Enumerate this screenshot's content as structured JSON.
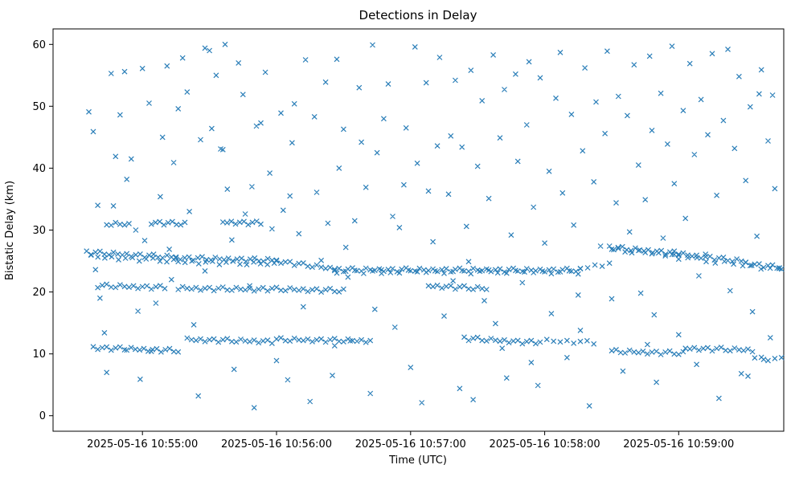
{
  "chart_data": {
    "type": "scatter",
    "title": "Detections in Delay",
    "xlabel": "Time (UTC)",
    "ylabel": "Bistatic Delay (km)",
    "marker": "x",
    "marker_color": "#1f77b4",
    "x_seconds_origin": "2025-05-16 10:54:00",
    "xlim": [
      20,
      347
    ],
    "ylim": [
      -2.5,
      62.5
    ],
    "yticks": [
      0,
      10,
      20,
      30,
      40,
      50,
      60
    ],
    "xticks": [
      {
        "t": 60,
        "label": "2025-05-16 10:55:00"
      },
      {
        "t": 120,
        "label": "2025-05-16 10:56:00"
      },
      {
        "t": 180,
        "label": "2025-05-16 10:57:00"
      },
      {
        "t": 240,
        "label": "2025-05-16 10:58:00"
      },
      {
        "t": 300,
        "label": "2025-05-16 10:59:00"
      }
    ],
    "legend": "none",
    "grid": false,
    "jitter_pattern": [
      0.2,
      -0.3,
      0.1,
      0.3,
      -0.15,
      -0.2,
      0.25,
      0,
      -0.1,
      0.15,
      -0.25,
      0.05
    ],
    "track_segments": [
      [
        35,
        75,
        2,
        26.4,
        25.6
      ],
      [
        75,
        120,
        2,
        25.5,
        25.1
      ],
      [
        120,
        146,
        2,
        25.0,
        23.7
      ],
      [
        146,
        256,
        2,
        23.6,
        23.5
      ],
      [
        256,
        269,
        3,
        23.8,
        24.6
      ],
      [
        269,
        298,
        2,
        27.2,
        26.3
      ],
      [
        298,
        330,
        2,
        26.2,
        24.9
      ],
      [
        330,
        346,
        2,
        24.6,
        23.9
      ],
      [
        37,
        74,
        3,
        25.7,
        25.0
      ],
      [
        76,
        119,
        3,
        24.9,
        24.5
      ],
      [
        147,
        255,
        4,
        23.3,
        23.2
      ],
      [
        270,
        300,
        3,
        26.8,
        25.9
      ],
      [
        300,
        345,
        4,
        25.6,
        23.6
      ],
      [
        40,
        70,
        2,
        21.0,
        20.7
      ],
      [
        76,
        112,
        2,
        20.6,
        20.4
      ],
      [
        114,
        150,
        2,
        20.5,
        20.2
      ],
      [
        188,
        214,
        2,
        21.0,
        20.5
      ],
      [
        38,
        52,
        2,
        11.0,
        10.8
      ],
      [
        53,
        76,
        2,
        10.8,
        10.5
      ],
      [
        80,
        118,
        2,
        12.3,
        12.0
      ],
      [
        120,
        162,
        2,
        12.3,
        12.1
      ],
      [
        204,
        236,
        2,
        12.5,
        11.8
      ],
      [
        238,
        262,
        3,
        12.1,
        11.9
      ],
      [
        270,
        302,
        2,
        10.4,
        10.1
      ],
      [
        303,
        333,
        2,
        10.9,
        10.6
      ],
      [
        334,
        346,
        3,
        9.3,
        9.1
      ],
      [
        44,
        54,
        2,
        31.0,
        30.9
      ],
      [
        64,
        79,
        2,
        31.2,
        31.0
      ],
      [
        96,
        113,
        2,
        31.3,
        31.1
      ]
    ],
    "noise_points": [
      [
        36,
        49.1
      ],
      [
        38,
        45.9
      ],
      [
        39,
        23.6
      ],
      [
        40,
        34.0
      ],
      [
        41,
        19.0
      ],
      [
        43,
        13.4
      ],
      [
        44,
        7.0
      ],
      [
        46,
        55.3
      ],
      [
        47,
        33.9
      ],
      [
        48,
        41.9
      ],
      [
        50,
        48.6
      ],
      [
        52,
        55.6
      ],
      [
        53,
        38.2
      ],
      [
        55,
        41.5
      ],
      [
        57,
        30.0
      ],
      [
        58,
        16.9
      ],
      [
        59,
        5.9
      ],
      [
        60,
        56.1
      ],
      [
        61,
        28.3
      ],
      [
        63,
        50.5
      ],
      [
        64,
        10.4
      ],
      [
        66,
        18.2
      ],
      [
        68,
        35.4
      ],
      [
        69,
        45.0
      ],
      [
        71,
        56.5
      ],
      [
        72,
        26.9
      ],
      [
        73,
        22.0
      ],
      [
        74,
        40.9
      ],
      [
        76,
        49.6
      ],
      [
        78,
        57.8
      ],
      [
        80,
        52.3
      ],
      [
        81,
        33.0
      ],
      [
        83,
        14.7
      ],
      [
        85,
        3.2
      ],
      [
        86,
        44.6
      ],
      [
        88,
        59.4
      ],
      [
        88,
        23.4
      ],
      [
        90,
        59.0
      ],
      [
        91,
        46.4
      ],
      [
        93,
        55.0
      ],
      [
        95,
        43.1
      ],
      [
        96,
        43.0
      ],
      [
        97,
        60.0
      ],
      [
        98,
        36.6
      ],
      [
        100,
        28.4
      ],
      [
        101,
        7.5
      ],
      [
        103,
        57.0
      ],
      [
        105,
        51.9
      ],
      [
        106,
        32.6
      ],
      [
        108,
        21.0
      ],
      [
        109,
        37.0
      ],
      [
        110,
        1.3
      ],
      [
        111,
        46.8
      ],
      [
        113,
        47.3
      ],
      [
        115,
        55.5
      ],
      [
        117,
        39.2
      ],
      [
        118,
        30.2
      ],
      [
        120,
        8.9
      ],
      [
        122,
        48.9
      ],
      [
        123,
        33.2
      ],
      [
        125,
        5.8
      ],
      [
        126,
        35.5
      ],
      [
        127,
        44.1
      ],
      [
        128,
        50.4
      ],
      [
        130,
        29.4
      ],
      [
        132,
        17.6
      ],
      [
        133,
        57.5
      ],
      [
        135,
        2.3
      ],
      [
        137,
        48.3
      ],
      [
        138,
        36.1
      ],
      [
        140,
        25.1
      ],
      [
        142,
        53.9
      ],
      [
        143,
        31.1
      ],
      [
        145,
        6.5
      ],
      [
        146,
        11.3
      ],
      [
        147,
        57.6
      ],
      [
        148,
        40.0
      ],
      [
        150,
        46.3
      ],
      [
        151,
        27.2
      ],
      [
        152,
        22.4
      ],
      [
        153,
        12.1
      ],
      [
        155,
        31.5
      ],
      [
        157,
        53.0
      ],
      [
        158,
        44.2
      ],
      [
        160,
        36.9
      ],
      [
        162,
        3.6
      ],
      [
        163,
        59.9
      ],
      [
        164,
        17.2
      ],
      [
        165,
        42.5
      ],
      [
        167,
        23.0
      ],
      [
        168,
        48.0
      ],
      [
        170,
        53.6
      ],
      [
        172,
        32.2
      ],
      [
        173,
        14.3
      ],
      [
        175,
        30.4
      ],
      [
        177,
        37.3
      ],
      [
        178,
        46.5
      ],
      [
        180,
        7.8
      ],
      [
        182,
        59.6
      ],
      [
        183,
        40.8
      ],
      [
        185,
        2.1
      ],
      [
        187,
        53.8
      ],
      [
        188,
        36.3
      ],
      [
        190,
        28.1
      ],
      [
        192,
        43.6
      ],
      [
        193,
        57.9
      ],
      [
        195,
        16.1
      ],
      [
        197,
        35.8
      ],
      [
        198,
        45.2
      ],
      [
        199,
        21.8
      ],
      [
        200,
        54.2
      ],
      [
        202,
        4.4
      ],
      [
        203,
        43.4
      ],
      [
        205,
        30.6
      ],
      [
        206,
        24.9
      ],
      [
        207,
        55.8
      ],
      [
        208,
        2.6
      ],
      [
        210,
        40.3
      ],
      [
        212,
        50.9
      ],
      [
        213,
        18.6
      ],
      [
        215,
        35.1
      ],
      [
        217,
        58.3
      ],
      [
        218,
        14.9
      ],
      [
        220,
        44.9
      ],
      [
        221,
        10.9
      ],
      [
        222,
        52.7
      ],
      [
        223,
        6.1
      ],
      [
        225,
        29.2
      ],
      [
        227,
        55.2
      ],
      [
        228,
        41.1
      ],
      [
        230,
        21.5
      ],
      [
        232,
        47.0
      ],
      [
        233,
        57.2
      ],
      [
        234,
        8.6
      ],
      [
        235,
        33.7
      ],
      [
        237,
        4.9
      ],
      [
        238,
        54.6
      ],
      [
        240,
        27.9
      ],
      [
        242,
        39.5
      ],
      [
        243,
        16.5
      ],
      [
        245,
        51.3
      ],
      [
        247,
        58.7
      ],
      [
        248,
        36.0
      ],
      [
        250,
        9.4
      ],
      [
        252,
        48.7
      ],
      [
        253,
        30.8
      ],
      [
        255,
        19.5
      ],
      [
        256,
        13.8
      ],
      [
        257,
        42.8
      ],
      [
        258,
        56.2
      ],
      [
        260,
        1.6
      ],
      [
        262,
        37.8
      ],
      [
        263,
        50.7
      ],
      [
        265,
        27.4
      ],
      [
        267,
        45.6
      ],
      [
        268,
        58.9
      ],
      [
        270,
        18.9
      ],
      [
        272,
        34.4
      ],
      [
        273,
        51.6
      ],
      [
        275,
        7.2
      ],
      [
        277,
        48.5
      ],
      [
        278,
        29.7
      ],
      [
        280,
        56.7
      ],
      [
        282,
        40.5
      ],
      [
        283,
        19.8
      ],
      [
        285,
        34.9
      ],
      [
        286,
        11.5
      ],
      [
        287,
        58.1
      ],
      [
        288,
        46.1
      ],
      [
        289,
        16.3
      ],
      [
        290,
        5.4
      ],
      [
        292,
        52.1
      ],
      [
        293,
        28.7
      ],
      [
        295,
        43.9
      ],
      [
        297,
        59.7
      ],
      [
        298,
        37.5
      ],
      [
        300,
        13.1
      ],
      [
        302,
        49.3
      ],
      [
        303,
        31.9
      ],
      [
        305,
        56.9
      ],
      [
        307,
        42.2
      ],
      [
        308,
        8.3
      ],
      [
        309,
        22.6
      ],
      [
        310,
        51.1
      ],
      [
        312,
        26.1
      ],
      [
        313,
        45.4
      ],
      [
        315,
        58.5
      ],
      [
        317,
        35.6
      ],
      [
        318,
        2.8
      ],
      [
        320,
        47.7
      ],
      [
        322,
        59.2
      ],
      [
        323,
        20.2
      ],
      [
        325,
        43.2
      ],
      [
        327,
        54.8
      ],
      [
        328,
        6.8
      ],
      [
        330,
        38.0
      ],
      [
        331,
        6.4
      ],
      [
        332,
        49.9
      ],
      [
        333,
        16.8
      ],
      [
        335,
        29.0
      ],
      [
        336,
        52.0
      ],
      [
        337,
        55.9
      ],
      [
        338,
        9.1
      ],
      [
        340,
        44.4
      ],
      [
        341,
        12.6
      ],
      [
        342,
        51.8
      ],
      [
        343,
        36.7
      ],
      [
        345,
        23.9
      ]
    ]
  }
}
